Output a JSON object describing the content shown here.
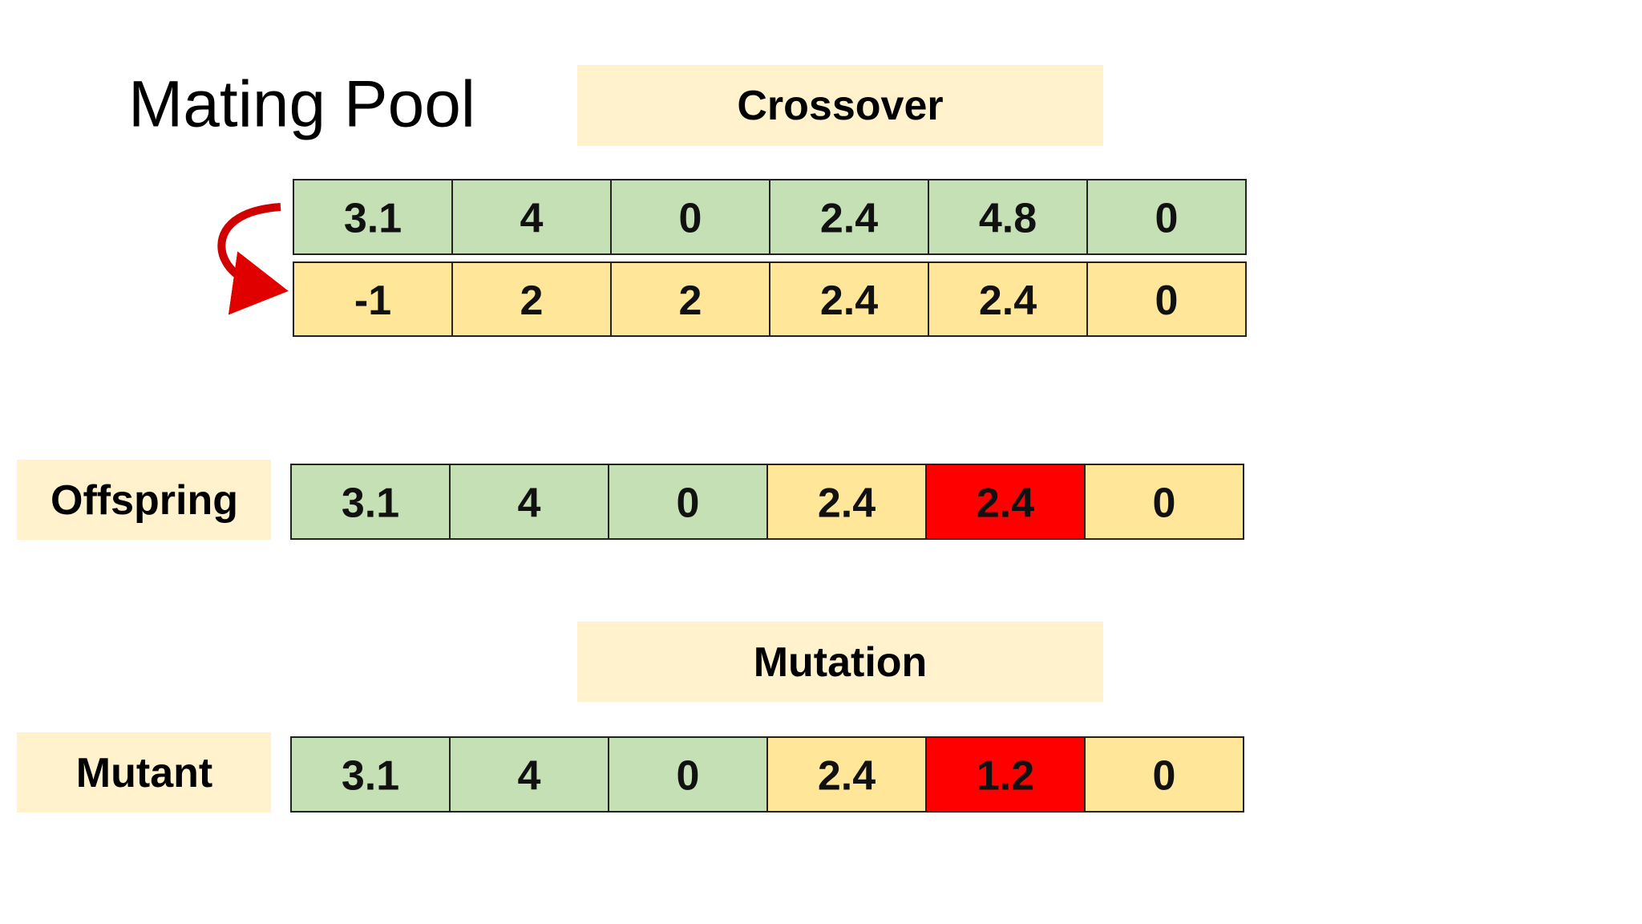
{
  "title": "Mating Pool",
  "crossover_label": "Crossover",
  "parents": [
    [
      3.1,
      4,
      0,
      2.4,
      4.8,
      0
    ],
    [
      -1,
      2,
      2,
      2.4,
      2.4,
      0
    ]
  ],
  "offspring": {
    "label": "Offspring",
    "values": [
      3.1,
      4,
      0,
      2.4,
      2.4,
      0
    ]
  },
  "mutation_label": "Mutation",
  "mutant": {
    "label": "Mutant",
    "values": [
      3.1,
      4,
      0,
      2.4,
      1.2,
      0
    ]
  }
}
